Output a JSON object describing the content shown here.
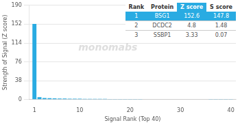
{
  "chart_data": {
    "type": "bar",
    "x": [
      1,
      2,
      3,
      4,
      5,
      6,
      7,
      8,
      9,
      10,
      11,
      12,
      13,
      14,
      15,
      16,
      17,
      18,
      19,
      20,
      21,
      22,
      23,
      24,
      25,
      26,
      27,
      28,
      29,
      30,
      31,
      32,
      33,
      34,
      35,
      36,
      37,
      38,
      39,
      40
    ],
    "values": [
      152.6,
      4.8,
      3.33,
      2.8,
      2.5,
      2.2,
      2.0,
      1.9,
      1.8,
      1.7,
      1.6,
      1.5,
      1.4,
      1.35,
      1.3,
      1.25,
      1.2,
      1.15,
      1.1,
      1.05,
      1.0,
      0.95,
      0.9,
      0.88,
      0.85,
      0.82,
      0.8,
      0.78,
      0.75,
      0.72,
      0.7,
      0.68,
      0.65,
      0.62,
      0.6,
      0.58,
      0.55,
      0.52,
      0.5,
      0.48
    ],
    "color": "#29ABE2",
    "xlabel": "Signal Rank (Top 40)",
    "ylabel": "Strength of Signal (Z score)",
    "xlim": [
      0,
      41
    ],
    "xticks": [
      1,
      10,
      20,
      30,
      40
    ],
    "ylim": [
      0,
      190
    ],
    "yticks": [
      0,
      38,
      76,
      114,
      152,
      190
    ],
    "grid": true,
    "annotations": [
      "monomabs"
    ],
    "table": [
      [
        "Rank",
        "Protein",
        "Z score",
        "S score"
      ],
      [
        "1",
        "BSG1",
        "152.6",
        "147.8"
      ],
      [
        "2",
        "DCDC2",
        "4.8",
        "1.48"
      ],
      [
        "3",
        "SSBP1",
        "3.33",
        "0.07"
      ]
    ]
  }
}
